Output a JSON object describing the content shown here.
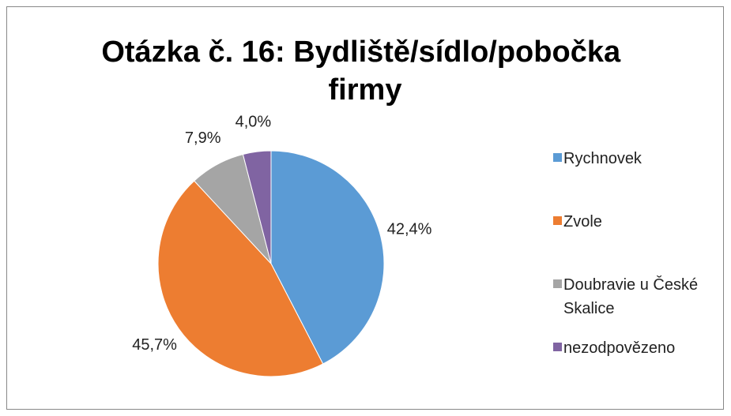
{
  "chart_data": {
    "type": "pie",
    "title": "Otázka č. 16: Bydliště/sídlo/pobočka firmy",
    "categories": [
      "Rychnovek",
      "Zvole",
      "Doubravie u České Skalice",
      "nezodpovězeno"
    ],
    "values": [
      42.4,
      45.7,
      7.9,
      4.0
    ],
    "value_labels": [
      "42,4%",
      "45,7%",
      "7,9%",
      "4,0%"
    ],
    "colors": [
      "#5b9bd5",
      "#ed7d31",
      "#a5a5a5",
      "#8064a2"
    ],
    "legend": "right"
  }
}
